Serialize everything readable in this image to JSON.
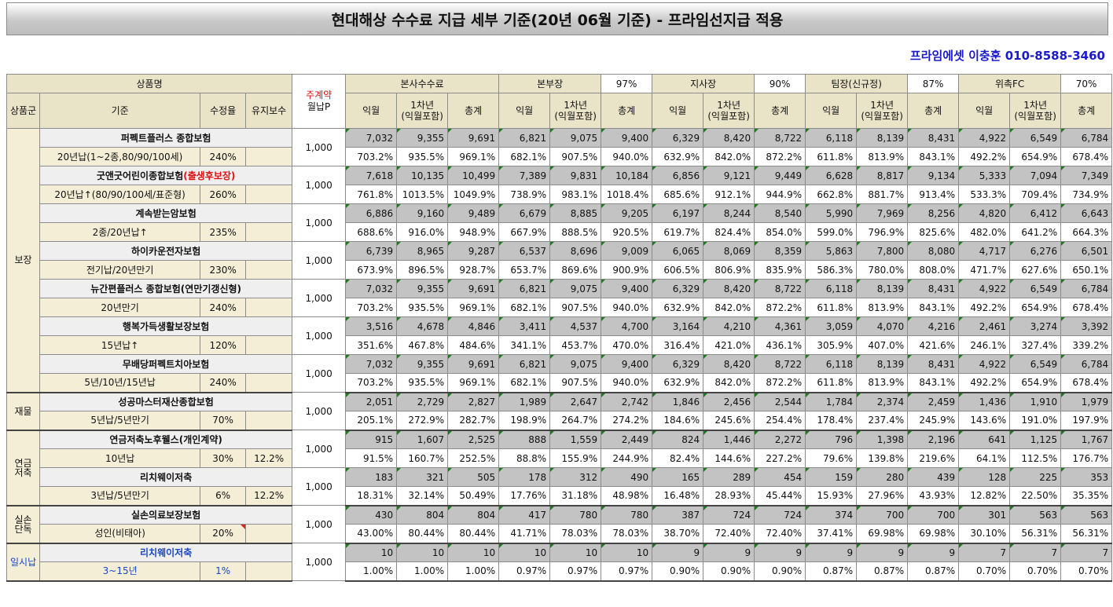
{
  "title": "현대해상 수수료 지급 세부 기준(20년 06월 기준) - 프라임선지급 적용",
  "contact": "프라임에셋 이충훈 010-8588-3460",
  "header": {
    "product": "상품명",
    "contract_line1": "주계약",
    "contract_line2": "월납P",
    "group": "상품군",
    "criteria": "기준",
    "rate": "수정율",
    "maintenance": "유지보수",
    "sections": [
      {
        "name": "본사수수료",
        "pct": ""
      },
      {
        "name": "본부장",
        "pct": "97%"
      },
      {
        "name": "지사장",
        "pct": "90%"
      },
      {
        "name": "팀장(신규정)",
        "pct": "87%"
      },
      {
        "name": "위촉FC",
        "pct": "70%"
      }
    ],
    "sub_month": "익월",
    "sub_year_line1": "1차년",
    "sub_year_line2": "(익월포함)",
    "sub_total": "총계"
  },
  "groups": [
    {
      "name": "보장",
      "rows": 7,
      "blue": false
    },
    {
      "name": "재물",
      "rows": 1,
      "blue": false
    },
    {
      "name": "연금\n저축",
      "rows": 2,
      "blue": false
    },
    {
      "name": "실손\n단독",
      "rows": 1,
      "blue": false
    },
    {
      "name": "일시납",
      "rows": 1,
      "blue": true
    }
  ],
  "products": [
    {
      "name": "퍼펙트플러스 종합보험",
      "name_red": "",
      "criteria": "20년납(1~2종,80/90/100세)",
      "rate": "240%",
      "maint": "",
      "monthly": "1,000",
      "blue": false,
      "tri": false,
      "nums": [
        "7,032",
        "9,355",
        "9,691",
        "6,821",
        "9,075",
        "9,400",
        "6,329",
        "8,420",
        "8,722",
        "6,118",
        "8,139",
        "8,431",
        "4,922",
        "6,549",
        "6,784"
      ],
      "pcts": [
        "703.2%",
        "935.5%",
        "969.1%",
        "682.1%",
        "907.5%",
        "940.0%",
        "632.9%",
        "842.0%",
        "872.2%",
        "611.8%",
        "813.9%",
        "843.1%",
        "492.2%",
        "654.9%",
        "678.4%"
      ]
    },
    {
      "name": "굿앤굿어린이종합보험",
      "name_red": "(출생후보장)",
      "criteria": "20년납↑(80/90/100세/표준형)",
      "rate": "260%",
      "maint": "",
      "monthly": "1,000",
      "blue": false,
      "tri": false,
      "nums": [
        "7,618",
        "10,135",
        "10,499",
        "7,389",
        "9,831",
        "10,184",
        "6,856",
        "9,121",
        "9,449",
        "6,628",
        "8,817",
        "9,134",
        "5,333",
        "7,094",
        "7,349"
      ],
      "pcts": [
        "761.8%",
        "1013.5%",
        "1049.9%",
        "738.9%",
        "983.1%",
        "1018.4%",
        "685.6%",
        "912.1%",
        "944.9%",
        "662.8%",
        "881.7%",
        "913.4%",
        "533.3%",
        "709.4%",
        "734.9%"
      ]
    },
    {
      "name": "계속받는암보험",
      "name_red": "",
      "criteria": "2종/20년납↑",
      "rate": "235%",
      "maint": "",
      "monthly": "1,000",
      "blue": false,
      "tri": false,
      "nums": [
        "6,886",
        "9,160",
        "9,489",
        "6,679",
        "8,885",
        "9,205",
        "6,197",
        "8,244",
        "8,540",
        "5,990",
        "7,969",
        "8,256",
        "4,820",
        "6,412",
        "6,643"
      ],
      "pcts": [
        "688.6%",
        "916.0%",
        "948.9%",
        "667.9%",
        "888.5%",
        "920.5%",
        "619.7%",
        "824.4%",
        "854.0%",
        "599.0%",
        "796.9%",
        "825.6%",
        "482.0%",
        "641.2%",
        "664.3%"
      ]
    },
    {
      "name": "하이카운전자보험",
      "name_red": "",
      "criteria": "전기납/20년만기",
      "rate": "230%",
      "maint": "",
      "monthly": "1,000",
      "blue": false,
      "tri": false,
      "nums": [
        "6,739",
        "8,965",
        "9,287",
        "6,537",
        "8,696",
        "9,009",
        "6,065",
        "8,069",
        "8,359",
        "5,863",
        "7,800",
        "8,080",
        "4,717",
        "6,276",
        "6,501"
      ],
      "pcts": [
        "673.9%",
        "896.5%",
        "928.7%",
        "653.7%",
        "869.6%",
        "900.9%",
        "606.5%",
        "806.9%",
        "835.9%",
        "586.3%",
        "780.0%",
        "808.0%",
        "471.7%",
        "627.6%",
        "650.1%"
      ]
    },
    {
      "name": "뉴간편플러스 종합보험(연만기갱신형)",
      "name_red": "",
      "criteria": "20년만기",
      "rate": "240%",
      "maint": "",
      "monthly": "1,000",
      "blue": false,
      "tri": false,
      "nums": [
        "7,032",
        "9,355",
        "9,691",
        "6,821",
        "9,075",
        "9,400",
        "6,329",
        "8,420",
        "8,722",
        "6,118",
        "8,139",
        "8,431",
        "4,922",
        "6,549",
        "6,784"
      ],
      "pcts": [
        "703.2%",
        "935.5%",
        "969.1%",
        "682.1%",
        "907.5%",
        "940.0%",
        "632.9%",
        "842.0%",
        "872.2%",
        "611.8%",
        "813.9%",
        "843.1%",
        "492.2%",
        "654.9%",
        "678.4%"
      ]
    },
    {
      "name": "행복가득생활보장보험",
      "name_red": "",
      "criteria": "15년납↑",
      "rate": "120%",
      "maint": "",
      "monthly": "1,000",
      "blue": false,
      "tri": false,
      "nums": [
        "3,516",
        "4,678",
        "4,846",
        "3,411",
        "4,537",
        "4,700",
        "3,164",
        "4,210",
        "4,361",
        "3,059",
        "4,070",
        "4,216",
        "2,461",
        "3,274",
        "3,392"
      ],
      "pcts": [
        "351.6%",
        "467.8%",
        "484.6%",
        "341.1%",
        "453.7%",
        "470.0%",
        "316.4%",
        "421.0%",
        "436.1%",
        "305.9%",
        "407.0%",
        "421.6%",
        "246.1%",
        "327.4%",
        "339.2%"
      ]
    },
    {
      "name": "무배당퍼펙트치아보험",
      "name_red": "",
      "criteria": "5년/10년/15년납",
      "rate": "240%",
      "maint": "",
      "monthly": "1,000",
      "blue": false,
      "tri": false,
      "nums": [
        "7,032",
        "9,355",
        "9,691",
        "6,821",
        "9,075",
        "9,400",
        "6,329",
        "8,420",
        "8,722",
        "6,118",
        "8,139",
        "8,431",
        "4,922",
        "6,549",
        "6,784"
      ],
      "pcts": [
        "703.2%",
        "935.5%",
        "969.1%",
        "682.1%",
        "907.5%",
        "940.0%",
        "632.9%",
        "842.0%",
        "872.2%",
        "611.8%",
        "813.9%",
        "843.1%",
        "492.2%",
        "654.9%",
        "678.4%"
      ]
    },
    {
      "name": "성공마스터재산종합보험",
      "name_red": "",
      "criteria": "5년납/5년만기",
      "rate": "70%",
      "maint": "",
      "monthly": "1,000",
      "blue": false,
      "tri": false,
      "nums": [
        "2,051",
        "2,729",
        "2,827",
        "1,989",
        "2,647",
        "2,742",
        "1,846",
        "2,456",
        "2,544",
        "1,784",
        "2,374",
        "2,459",
        "1,436",
        "1,910",
        "1,979"
      ],
      "pcts": [
        "205.1%",
        "272.9%",
        "282.7%",
        "198.9%",
        "264.7%",
        "274.2%",
        "184.6%",
        "245.6%",
        "254.4%",
        "178.4%",
        "237.4%",
        "245.9%",
        "143.6%",
        "191.0%",
        "197.9%"
      ]
    },
    {
      "name": "연금저축노후웰스(개인계약)",
      "name_red": "",
      "criteria": "10년납",
      "rate": "30%",
      "maint": "12.2%",
      "monthly": "1,000",
      "blue": false,
      "tri": false,
      "nums": [
        "915",
        "1,607",
        "2,525",
        "888",
        "1,559",
        "2,449",
        "824",
        "1,446",
        "2,272",
        "796",
        "1,398",
        "2,196",
        "641",
        "1,125",
        "1,767"
      ],
      "pcts": [
        "91.5%",
        "160.7%",
        "252.5%",
        "88.8%",
        "155.9%",
        "244.9%",
        "82.4%",
        "144.6%",
        "227.2%",
        "79.6%",
        "139.8%",
        "219.6%",
        "64.1%",
        "112.5%",
        "176.7%"
      ]
    },
    {
      "name": "리치웨이저축",
      "name_red": "",
      "criteria": "3년납/5년만기",
      "rate": "6%",
      "maint": "12.2%",
      "monthly": "1,000",
      "blue": false,
      "tri": false,
      "nums": [
        "183",
        "321",
        "505",
        "178",
        "312",
        "490",
        "165",
        "289",
        "454",
        "159",
        "280",
        "439",
        "128",
        "225",
        "353"
      ],
      "pcts": [
        "18.31%",
        "32.14%",
        "50.49%",
        "17.76%",
        "31.18%",
        "48.98%",
        "16.48%",
        "28.93%",
        "45.44%",
        "15.93%",
        "27.96%",
        "43.93%",
        "12.82%",
        "22.50%",
        "35.35%"
      ]
    },
    {
      "name": "실손의료보장보험",
      "name_red": "",
      "criteria": "성인(비태아)",
      "rate": "20%",
      "maint": "",
      "monthly": "1,000",
      "blue": false,
      "tri": true,
      "nums": [
        "430",
        "804",
        "804",
        "417",
        "780",
        "780",
        "387",
        "724",
        "724",
        "374",
        "700",
        "700",
        "301",
        "563",
        "563"
      ],
      "pcts": [
        "43.00%",
        "80.44%",
        "80.44%",
        "41.71%",
        "78.03%",
        "78.03%",
        "38.70%",
        "72.40%",
        "72.40%",
        "37.41%",
        "69.98%",
        "69.98%",
        "30.10%",
        "56.31%",
        "56.31%"
      ]
    },
    {
      "name": "리치웨이저축",
      "name_red": "",
      "criteria": "3~15년",
      "rate": "1%",
      "maint": "",
      "monthly": "1,000",
      "blue": true,
      "tri": false,
      "nums": [
        "10",
        "10",
        "10",
        "10",
        "10",
        "10",
        "9",
        "9",
        "9",
        "9",
        "9",
        "9",
        "7",
        "7",
        "7"
      ],
      "pcts": [
        "1.00%",
        "1.00%",
        "1.00%",
        "0.97%",
        "0.97%",
        "0.97%",
        "0.90%",
        "0.90%",
        "0.90%",
        "0.87%",
        "0.87%",
        "0.87%",
        "0.70%",
        "0.70%",
        "0.70%"
      ]
    }
  ]
}
